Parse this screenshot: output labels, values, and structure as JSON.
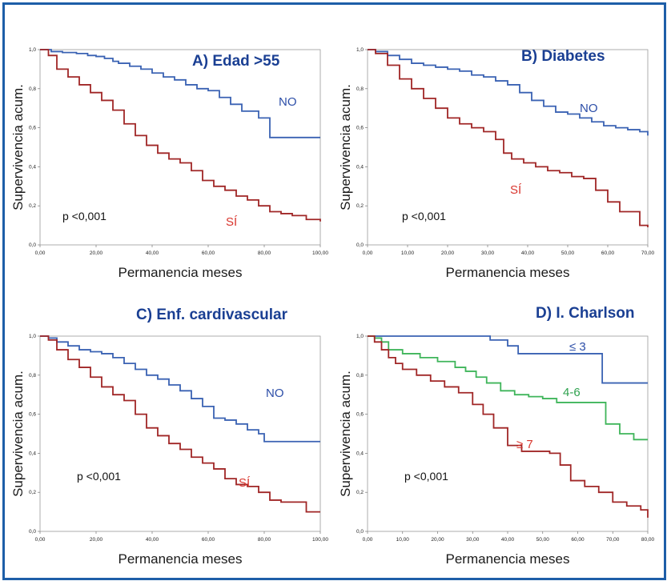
{
  "colors": {
    "frame": "#1d5ea8",
    "title": "#1a3f93",
    "blue": "#3a62b3",
    "red": "#a02626",
    "green": "#3fb55a",
    "red_label": "#d9362e",
    "blue_label": "#2c4ea8",
    "green_label": "#2fa24f"
  },
  "chart_data": [
    {
      "type": "line",
      "title": "A) Edad >55",
      "xlabel": "Permanencia meses",
      "ylabel": "Supervivencia acum.",
      "xlim": [
        0,
        100
      ],
      "ylim": [
        0,
        1
      ],
      "xticks": [
        "0,00",
        "20,00",
        "40,00",
        "60,00",
        "80,00",
        "100,00"
      ],
      "yticks": [
        "0,0",
        "0,2",
        "0,4",
        "0,6",
        "0,8",
        "1,0"
      ],
      "annotation": "p <0,001",
      "series": [
        {
          "name": "NO",
          "color": "blue",
          "x": [
            0,
            4,
            8,
            13,
            17,
            20,
            23,
            26,
            28,
            32,
            36,
            40,
            44,
            48,
            52,
            56,
            60,
            64,
            68,
            72,
            78,
            82,
            86,
            90,
            95,
            100
          ],
          "y": [
            1.0,
            0.99,
            0.985,
            0.98,
            0.97,
            0.965,
            0.955,
            0.94,
            0.93,
            0.915,
            0.9,
            0.88,
            0.86,
            0.845,
            0.82,
            0.8,
            0.79,
            0.755,
            0.72,
            0.685,
            0.65,
            0.55,
            0.55,
            0.55,
            0.55,
            0.55
          ]
        },
        {
          "name": "SÍ",
          "color": "red",
          "x": [
            0,
            3,
            6,
            10,
            14,
            18,
            22,
            26,
            30,
            34,
            38,
            42,
            46,
            50,
            54,
            58,
            62,
            66,
            70,
            74,
            78,
            82,
            86,
            90,
            95,
            100
          ],
          "y": [
            1.0,
            0.97,
            0.9,
            0.86,
            0.82,
            0.78,
            0.74,
            0.69,
            0.62,
            0.56,
            0.51,
            0.47,
            0.44,
            0.42,
            0.38,
            0.33,
            0.3,
            0.28,
            0.25,
            0.23,
            0.2,
            0.17,
            0.16,
            0.15,
            0.13,
            0.12
          ]
        }
      ]
    },
    {
      "type": "line",
      "title": "B) Diabetes",
      "xlabel": "Permanencia meses",
      "ylabel": "Supervivencia acum.",
      "xlim": [
        0,
        70
      ],
      "ylim": [
        0,
        1
      ],
      "xticks": [
        "0,00",
        "10,00",
        "20,00",
        "30,00",
        "40,00",
        "50,00",
        "60,00",
        "70,00"
      ],
      "yticks": [
        "0,0",
        "0,2",
        "0,4",
        "0,6",
        "0,8",
        "1,0"
      ],
      "annotation": "p <0,001",
      "series": [
        {
          "name": "NO",
          "color": "blue",
          "x": [
            0,
            2,
            5,
            8,
            11,
            14,
            17,
            20,
            23,
            26,
            29,
            32,
            35,
            38,
            41,
            44,
            47,
            50,
            53,
            56,
            59,
            62,
            65,
            68,
            70
          ],
          "y": [
            1.0,
            0.99,
            0.97,
            0.95,
            0.93,
            0.92,
            0.91,
            0.9,
            0.89,
            0.87,
            0.86,
            0.84,
            0.82,
            0.78,
            0.74,
            0.71,
            0.68,
            0.67,
            0.65,
            0.63,
            0.61,
            0.6,
            0.59,
            0.58,
            0.56
          ]
        },
        {
          "name": "SÍ",
          "color": "red",
          "x": [
            0,
            2,
            5,
            8,
            11,
            14,
            17,
            20,
            23,
            26,
            29,
            32,
            34,
            36,
            39,
            42,
            45,
            48,
            51,
            54,
            57,
            60,
            63,
            66,
            68,
            70
          ],
          "y": [
            1.0,
            0.98,
            0.92,
            0.85,
            0.8,
            0.75,
            0.7,
            0.65,
            0.62,
            0.6,
            0.58,
            0.54,
            0.47,
            0.44,
            0.42,
            0.4,
            0.38,
            0.37,
            0.35,
            0.34,
            0.28,
            0.22,
            0.17,
            0.17,
            0.1,
            0.09
          ]
        }
      ]
    },
    {
      "type": "line",
      "title": "C) Enf. cardivascular",
      "xlabel": "Permanencia meses",
      "ylabel": "Supervivencia acum.",
      "xlim": [
        0,
        100
      ],
      "ylim": [
        0,
        1
      ],
      "xticks": [
        "0,00",
        "20,00",
        "40,00",
        "60,00",
        "80,00",
        "100,00"
      ],
      "yticks": [
        "0,0",
        "0,2",
        "0,4",
        "0,6",
        "0,8",
        "1,0"
      ],
      "annotation": "p <0,001",
      "series": [
        {
          "name": "NO",
          "color": "blue",
          "x": [
            0,
            3,
            6,
            10,
            14,
            18,
            22,
            26,
            30,
            34,
            38,
            42,
            46,
            50,
            54,
            58,
            62,
            66,
            70,
            74,
            78,
            80,
            85,
            90,
            95,
            100
          ],
          "y": [
            1.0,
            0.99,
            0.97,
            0.95,
            0.93,
            0.92,
            0.91,
            0.89,
            0.86,
            0.83,
            0.8,
            0.78,
            0.75,
            0.72,
            0.68,
            0.64,
            0.58,
            0.57,
            0.55,
            0.52,
            0.5,
            0.46,
            0.46,
            0.46,
            0.46,
            0.46
          ]
        },
        {
          "name": "SÍ",
          "color": "red",
          "x": [
            0,
            3,
            6,
            10,
            14,
            18,
            22,
            26,
            30,
            34,
            38,
            42,
            46,
            50,
            54,
            58,
            62,
            66,
            70,
            74,
            78,
            82,
            86,
            90,
            95,
            100
          ],
          "y": [
            1.0,
            0.98,
            0.93,
            0.88,
            0.84,
            0.79,
            0.74,
            0.7,
            0.67,
            0.6,
            0.53,
            0.49,
            0.45,
            0.42,
            0.38,
            0.35,
            0.32,
            0.27,
            0.24,
            0.23,
            0.2,
            0.16,
            0.15,
            0.15,
            0.1,
            0.1
          ]
        }
      ]
    },
    {
      "type": "line",
      "title": "D) I. Charlson",
      "xlabel": "Permanencia meses",
      "ylabel": "Supervivencia acum.",
      "xlim": [
        0,
        80
      ],
      "ylim": [
        0,
        1
      ],
      "xticks": [
        "0,00",
        "10,00",
        "20,00",
        "30,00",
        "40,00",
        "50,00",
        "60,00",
        "70,00",
        "80,00"
      ],
      "yticks": [
        "0,0",
        "0,2",
        "0,4",
        "0,6",
        "0,8",
        "1,0"
      ],
      "annotation": "p <0,001",
      "series": [
        {
          "name": "≤ 3",
          "color": "blue",
          "x": [
            0,
            5,
            10,
            15,
            20,
            25,
            30,
            35,
            40,
            43,
            48,
            55,
            60,
            65,
            67,
            70,
            75,
            80
          ],
          "y": [
            1.0,
            1.0,
            1.0,
            1.0,
            1.0,
            1.0,
            1.0,
            0.98,
            0.95,
            0.91,
            0.91,
            0.91,
            0.91,
            0.91,
            0.76,
            0.76,
            0.76,
            0.76
          ]
        },
        {
          "name": "4-6",
          "color": "green",
          "x": [
            0,
            2,
            4,
            6,
            10,
            15,
            20,
            25,
            28,
            31,
            34,
            38,
            42,
            46,
            50,
            54,
            58,
            62,
            66,
            68,
            72,
            76,
            80
          ],
          "y": [
            1.0,
            0.99,
            0.97,
            0.93,
            0.91,
            0.89,
            0.87,
            0.84,
            0.82,
            0.79,
            0.76,
            0.72,
            0.7,
            0.69,
            0.68,
            0.66,
            0.66,
            0.66,
            0.66,
            0.55,
            0.5,
            0.47,
            0.47
          ]
        },
        {
          "name": "≥ 7",
          "color": "red",
          "x": [
            0,
            2,
            4,
            6,
            8,
            10,
            14,
            18,
            22,
            26,
            30,
            33,
            36,
            40,
            44,
            48,
            52,
            55,
            58,
            62,
            66,
            70,
            74,
            78,
            80
          ],
          "y": [
            1.0,
            0.97,
            0.93,
            0.89,
            0.86,
            0.83,
            0.8,
            0.77,
            0.74,
            0.71,
            0.65,
            0.6,
            0.53,
            0.44,
            0.41,
            0.41,
            0.4,
            0.34,
            0.26,
            0.23,
            0.2,
            0.15,
            0.13,
            0.11,
            0.07
          ]
        }
      ]
    }
  ]
}
